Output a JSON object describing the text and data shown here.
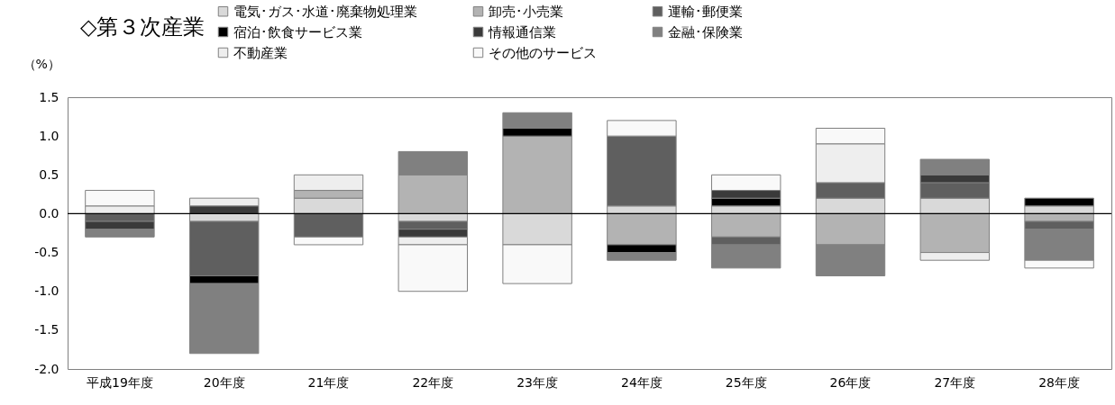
{
  "chart_data": {
    "type": "bar",
    "stacked": true,
    "title": "◇第３次産業",
    "ylabel": "（%）",
    "categories": [
      "平成19年度",
      "20年度",
      "21年度",
      "22年度",
      "23年度",
      "24年度",
      "25年度",
      "26年度",
      "27年度",
      "28年度"
    ],
    "series": [
      {
        "name": "電気･ガス･水道･廃棄物処理業",
        "color": "#d9d9d9",
        "values": [
          null,
          -0.1,
          0.2,
          -0.1,
          -0.4,
          0.1,
          0.1,
          0.2,
          0.2,
          0.1
        ]
      },
      {
        "name": "卸売･小売業",
        "color": "#b3b3b3",
        "values": [
          null,
          null,
          0.1,
          0.5,
          1.0,
          -0.4,
          -0.3,
          -0.4,
          -0.5,
          -0.1
        ]
      },
      {
        "name": "運輸･郵便業",
        "color": "#5f5f5f",
        "values": [
          -0.1,
          -0.7,
          -0.3,
          -0.1,
          null,
          0.9,
          -0.1,
          0.2,
          0.2,
          -0.1
        ]
      },
      {
        "name": "宿泊･飲食サービス業",
        "color": "#000000",
        "values": [
          null,
          -0.1,
          null,
          null,
          0.1,
          -0.1,
          0.1,
          null,
          null,
          0.1
        ]
      },
      {
        "name": "情報通信業",
        "color": "#3a3a3a",
        "values": [
          -0.1,
          0.1,
          null,
          -0.1,
          null,
          null,
          0.1,
          null,
          0.1,
          null
        ]
      },
      {
        "name": "金融･保険業",
        "color": "#808080",
        "values": [
          -0.1,
          -0.9,
          null,
          0.3,
          0.2,
          -0.1,
          -0.3,
          -0.4,
          0.2,
          -0.4
        ]
      },
      {
        "name": "不動産業",
        "color": "#eeeeee",
        "values": [
          0.1,
          0.1,
          0.2,
          -0.1,
          null,
          null,
          null,
          0.5,
          -0.1,
          null
        ]
      },
      {
        "name": "その他のサービス",
        "color": "#f9f9f9",
        "values": [
          0.2,
          null,
          -0.1,
          -0.6,
          -0.5,
          0.2,
          0.2,
          0.2,
          null,
          -0.1
        ]
      }
    ],
    "ylim": [
      -2.0,
      1.5
    ],
    "yticks": [
      {
        "value": -2.0,
        "label": "-2.0"
      },
      {
        "value": -1.5,
        "label": "-1.5"
      },
      {
        "value": -1.0,
        "label": "-1.0"
      },
      {
        "value": -0.5,
        "label": "-0.5"
      },
      {
        "value": 0,
        "label": "0.0"
      },
      {
        "value": 0.5,
        "label": "0.5"
      },
      {
        "value": 1.0,
        "label": "1.0"
      },
      {
        "value": 1.5,
        "label": "1.5"
      }
    ],
    "ref_lines": [
      {
        "axis": "y",
        "value": 0,
        "color": "#000000"
      }
    ],
    "legend": "top",
    "grid": false
  }
}
